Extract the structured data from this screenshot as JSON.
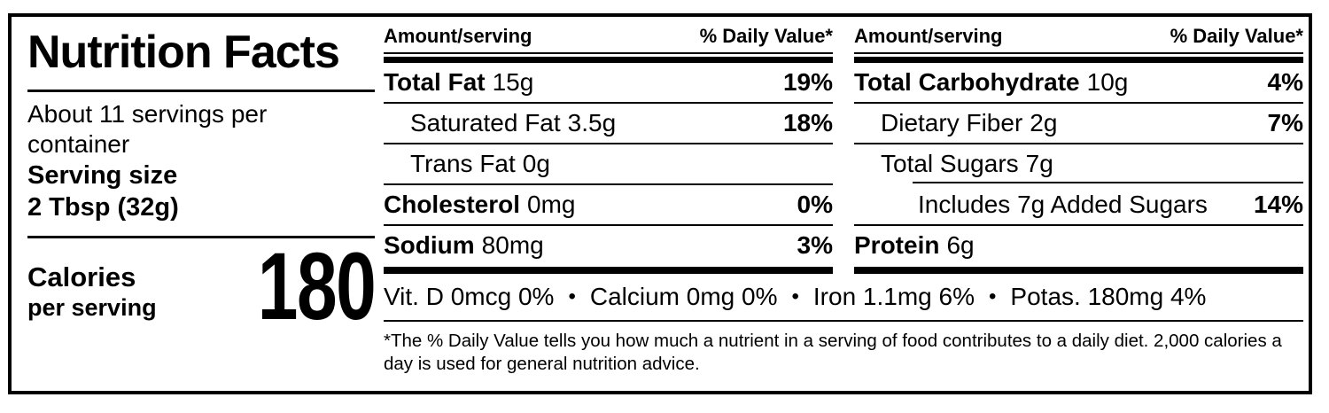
{
  "label": {
    "title": "Nutrition Facts",
    "servings_per_container": "About 11 servings per container",
    "serving_size_label": "Serving size",
    "serving_size_value": "2 Tbsp (32g)",
    "calories_label": "Calories",
    "calories_sublabel": "per serving",
    "calories_value": "180",
    "columns": [
      {
        "header_amount": "Amount/serving",
        "header_dv": "% Daily Value*",
        "rows": [
          {
            "name": "Total Fat",
            "amount": "15g",
            "dv": "19%"
          },
          {
            "name": "Saturated Fat",
            "amount": "3.5g",
            "dv": "18%"
          },
          {
            "name": "Trans Fat",
            "amount": "0g",
            "dv": ""
          },
          {
            "name": "Cholesterol",
            "amount": "0mg",
            "dv": "0%"
          },
          {
            "name": "Sodium",
            "amount": "80mg",
            "dv": "3%"
          }
        ]
      },
      {
        "header_amount": "Amount/serving",
        "header_dv": "% Daily Value*",
        "rows": [
          {
            "name": "Total Carbohydrate",
            "amount": "10g",
            "dv": "4%"
          },
          {
            "name": "Dietary Fiber",
            "amount": "2g",
            "dv": "7%"
          },
          {
            "name": "Total Sugars",
            "amount": "7g",
            "dv": ""
          },
          {
            "name": "Includes 7g Added Sugars",
            "amount": "",
            "dv": "14%"
          },
          {
            "name": "Protein",
            "amount": "6g",
            "dv": ""
          }
        ]
      }
    ],
    "micronutrients": {
      "separator": "•",
      "items": [
        "Vit. D 0mcg 0%",
        "Calcium 0mg 0%",
        "Iron 1.1mg 6%",
        "Potas. 180mg 4%"
      ]
    },
    "footnote": "*The % Daily Value tells you how much a nutrient in a serving of food contributes to a daily diet. 2,000 calories a day is used for general nutrition advice."
  },
  "colors": {
    "text": "#000000",
    "background": "#ffffff",
    "border": "#000000"
  }
}
